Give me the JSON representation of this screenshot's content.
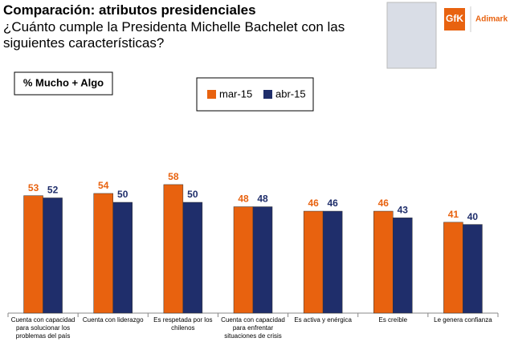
{
  "chart_data": {
    "type": "bar",
    "title": "Comparación: atributos presidenciales",
    "subtitle": "¿Cuánto cumple la Presidenta Michelle Bachelet con las siguientes características?",
    "y_label": "% Mucho + Algo",
    "logo": [
      "GfK",
      "Adimark"
    ],
    "categories": [
      "Cuenta con capacidad para solucionar los problemas del país",
      "Cuenta con liderazgo",
      "Es respetada por los chilenos",
      "Cuenta con capacidad para enfrentar situaciones de crisis",
      "Es activa y enérgica",
      "Es creíble",
      "Le genera confianza"
    ],
    "series": [
      {
        "name": "mar-15",
        "color": "#e8620f",
        "values": [
          53,
          54,
          58,
          48,
          46,
          46,
          41
        ]
      },
      {
        "name": "abr-15",
        "color": "#1f2e6b",
        "values": [
          52,
          50,
          50,
          48,
          46,
          43,
          40
        ]
      }
    ],
    "ylim": [
      0,
      100
    ]
  }
}
